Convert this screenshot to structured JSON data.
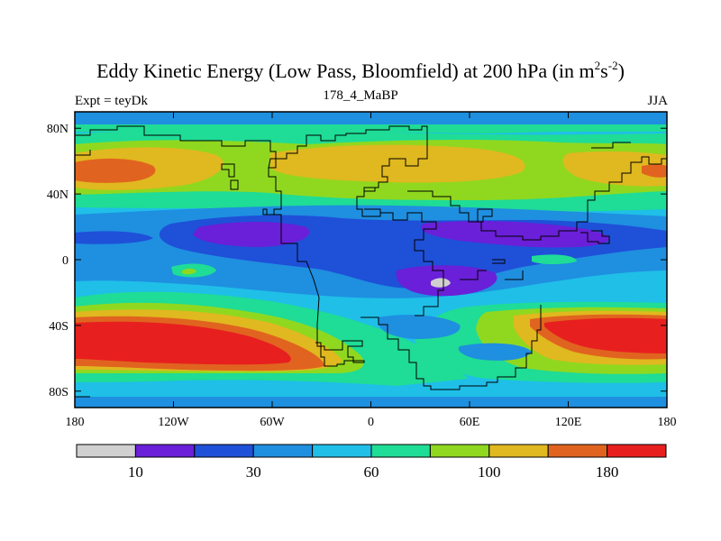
{
  "title": {
    "main": "Eddy Kinetic Energy (Low Pass, Bloomfield) at 200 hPa (in m",
    "sup1": "2",
    "mid": "s",
    "sup2": "-2",
    "close": ")"
  },
  "subtitle": {
    "left": "Expt = teyDk",
    "center": "178_4_MaBP",
    "right": "JJA"
  },
  "axes": {
    "x_ticks": [
      "180",
      "120W",
      "60W",
      "0",
      "60E",
      "120E",
      "180"
    ],
    "y_ticks": [
      "80N",
      "40N",
      "0",
      "40S",
      "80S"
    ]
  },
  "colorbar": {
    "colors": [
      "#d0d0d0",
      "#6a1fd8",
      "#1f50d8",
      "#1f8fe0",
      "#1fbfe8",
      "#1fdc96",
      "#90d81f",
      "#e0b81f",
      "#e0641f",
      "#e81f1f"
    ],
    "labels": [
      {
        "text": "10",
        "boundary": 1
      },
      {
        "text": "30",
        "boundary": 3
      },
      {
        "text": "60",
        "boundary": 5
      },
      {
        "text": "100",
        "boundary": 7
      },
      {
        "text": "180",
        "boundary": 9
      }
    ]
  }
}
